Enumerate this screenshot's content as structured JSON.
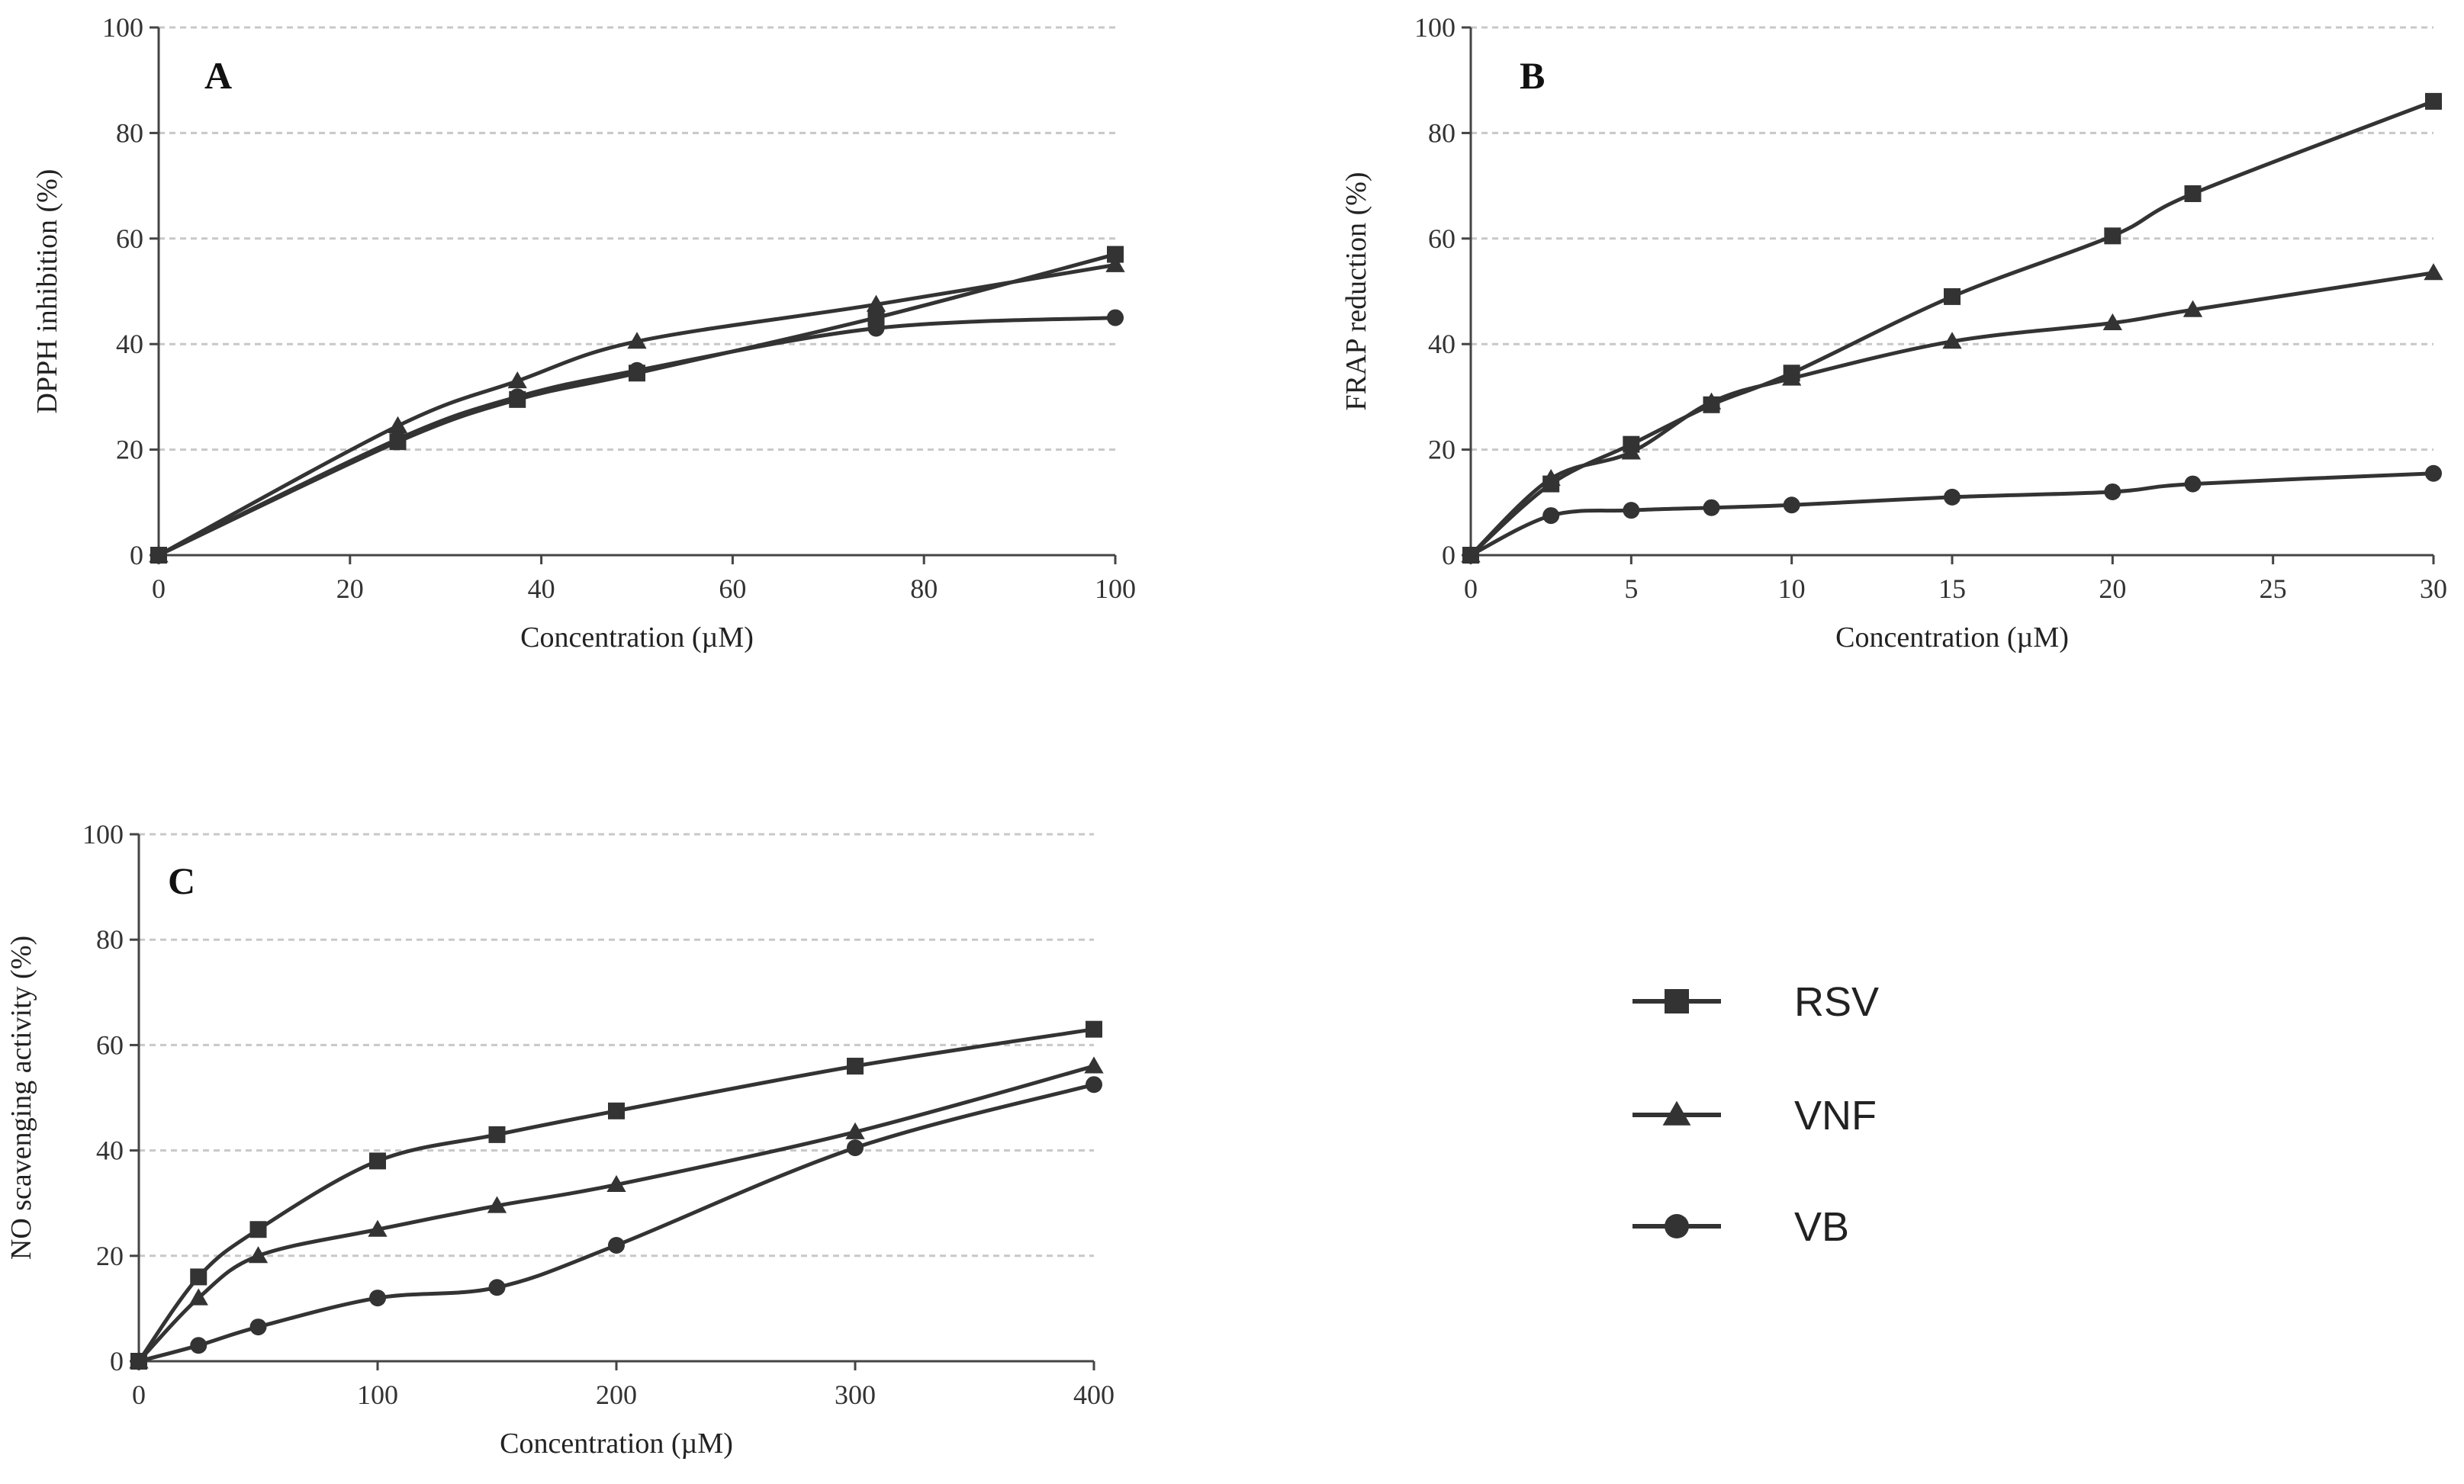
{
  "colors": {
    "line": "#333333",
    "grid": "#c8c8c8",
    "axis": "#444444",
    "background": "#ffffff"
  },
  "legend": {
    "items": [
      {
        "label": "RSV",
        "marker": "square"
      },
      {
        "label": "VNF",
        "marker": "triangle"
      },
      {
        "label": "VB",
        "marker": "circle"
      }
    ]
  },
  "chart_data": [
    {
      "panel": "A",
      "type": "line",
      "title": "",
      "xlabel": "Concentration (µM)",
      "ylabel": "DPPH inhibition (%)",
      "xlim": [
        0,
        100
      ],
      "ylim": [
        0,
        100
      ],
      "xticks": [
        0,
        20,
        40,
        60,
        80,
        100
      ],
      "yticks": [
        0,
        20,
        40,
        60,
        80,
        100
      ],
      "grid": "horizontal",
      "series": [
        {
          "name": "RSV",
          "marker": "square",
          "x": [
            0,
            25,
            37.5,
            50,
            75,
            100
          ],
          "y": [
            0,
            21.5,
            29.5,
            34.5,
            45,
            57
          ]
        },
        {
          "name": "VNF",
          "marker": "triangle",
          "x": [
            0,
            25,
            37.5,
            50,
            75,
            100
          ],
          "y": [
            0,
            24.5,
            33,
            40.5,
            47.5,
            55
          ]
        },
        {
          "name": "VB",
          "marker": "circle",
          "x": [
            0,
            25,
            37.5,
            50,
            75,
            100
          ],
          "y": [
            0,
            22,
            30,
            35,
            43,
            45
          ]
        }
      ]
    },
    {
      "panel": "B",
      "type": "line",
      "title": "",
      "xlabel": "Concentration (µM)",
      "ylabel": "FRAP reduction (%)",
      "xlim": [
        0,
        30
      ],
      "ylim": [
        0,
        100
      ],
      "xticks": [
        0,
        5,
        10,
        15,
        20,
        25,
        30
      ],
      "yticks": [
        0,
        20,
        40,
        60,
        80,
        100
      ],
      "grid": "horizontal",
      "series": [
        {
          "name": "RSV",
          "marker": "square",
          "x": [
            0,
            2.5,
            5,
            7.5,
            10,
            15,
            20,
            22.5,
            30
          ],
          "y": [
            0,
            13.5,
            21,
            28.5,
            34.5,
            49,
            60.5,
            68.5,
            86
          ]
        },
        {
          "name": "VNF",
          "marker": "triangle",
          "x": [
            0,
            2.5,
            5,
            7.5,
            10,
            15,
            20,
            22.5,
            30
          ],
          "y": [
            0,
            14.5,
            19.5,
            29,
            33.5,
            40.5,
            44,
            46.5,
            53.5
          ]
        },
        {
          "name": "VB",
          "marker": "circle",
          "x": [
            0,
            2.5,
            5,
            7.5,
            10,
            15,
            20,
            22.5,
            30
          ],
          "y": [
            0,
            7.5,
            8.5,
            9,
            9.5,
            11,
            12,
            13.5,
            15.5
          ]
        }
      ]
    },
    {
      "panel": "C",
      "type": "line",
      "title": "",
      "xlabel": "Concentration (µM)",
      "ylabel": "NO scavenging activity (%)",
      "xlim": [
        0,
        400
      ],
      "ylim": [
        0,
        100
      ],
      "xticks": [
        0,
        100,
        200,
        300,
        400
      ],
      "yticks": [
        0,
        20,
        40,
        60,
        80,
        100
      ],
      "grid": "horizontal",
      "series": [
        {
          "name": "RSV",
          "marker": "square",
          "x": [
            0,
            25,
            50,
            100,
            150,
            200,
            300,
            400
          ],
          "y": [
            0,
            16,
            25,
            38,
            43,
            47.5,
            56,
            63
          ]
        },
        {
          "name": "VNF",
          "marker": "triangle",
          "x": [
            0,
            25,
            50,
            100,
            150,
            200,
            300,
            400
          ],
          "y": [
            0,
            12,
            20,
            25,
            29.5,
            33.5,
            43.5,
            56
          ]
        },
        {
          "name": "VB",
          "marker": "circle",
          "x": [
            0,
            25,
            50,
            100,
            150,
            200,
            300,
            400
          ],
          "y": [
            0,
            3,
            6.5,
            12,
            14,
            22,
            40.5,
            52.5
          ]
        }
      ]
    }
  ]
}
